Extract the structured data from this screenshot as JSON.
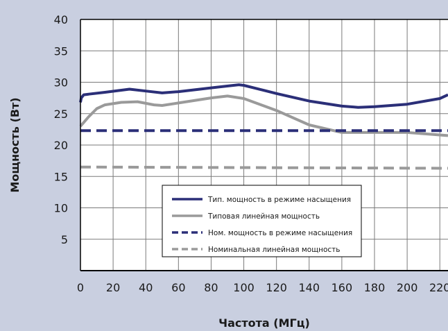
{
  "chart_data": {
    "type": "line",
    "xlabel": "Частота (МГц)",
    "ylabel": "Мощность (Вт)",
    "xlim": [
      0,
      225
    ],
    "ylim": [
      0,
      40
    ],
    "x_ticks": [
      0,
      20,
      40,
      60,
      80,
      100,
      120,
      140,
      160,
      180,
      200,
      220
    ],
    "y_ticks": [
      5,
      10,
      15,
      20,
      25,
      30,
      35,
      40
    ],
    "grid": true,
    "legend_position": "bottom-center",
    "series": [
      {
        "name": "Тип. мощность в режиме насыщения",
        "color": "#2b2f78",
        "style": "solid",
        "x": [
          0,
          0.5,
          2,
          5,
          15,
          30,
          40,
          50,
          60,
          80,
          97,
          100,
          120,
          140,
          160,
          170,
          180,
          200,
          220,
          225
        ],
        "y": [
          26.8,
          27.5,
          28.0,
          28.1,
          28.4,
          28.9,
          28.6,
          28.3,
          28.5,
          29.1,
          29.6,
          29.5,
          28.2,
          27.0,
          26.2,
          26.0,
          26.1,
          26.5,
          27.4,
          28.0
        ]
      },
      {
        "name": "Типовая линейная мощность",
        "color": "#9a9a9a",
        "style": "solid",
        "x": [
          0,
          5,
          10,
          15,
          25,
          35,
          45,
          50,
          60,
          80,
          90,
          100,
          120,
          140,
          160,
          180,
          200,
          220,
          225
        ],
        "y": [
          23.0,
          24.5,
          25.8,
          26.4,
          26.8,
          26.9,
          26.4,
          26.3,
          26.7,
          27.5,
          27.8,
          27.4,
          25.5,
          23.2,
          22.0,
          22.0,
          22.0,
          21.6,
          21.5
        ]
      },
      {
        "name": "Ном. мощность в режиме насыщения",
        "color": "#2b2f78",
        "style": "dashed",
        "x": [
          0,
          225
        ],
        "y": [
          22.3,
          22.3
        ]
      },
      {
        "name": "Номинальная линейная мощность",
        "color": "#9a9a9a",
        "style": "dashed",
        "x": [
          0,
          225
        ],
        "y": [
          16.5,
          16.3
        ]
      }
    ]
  }
}
